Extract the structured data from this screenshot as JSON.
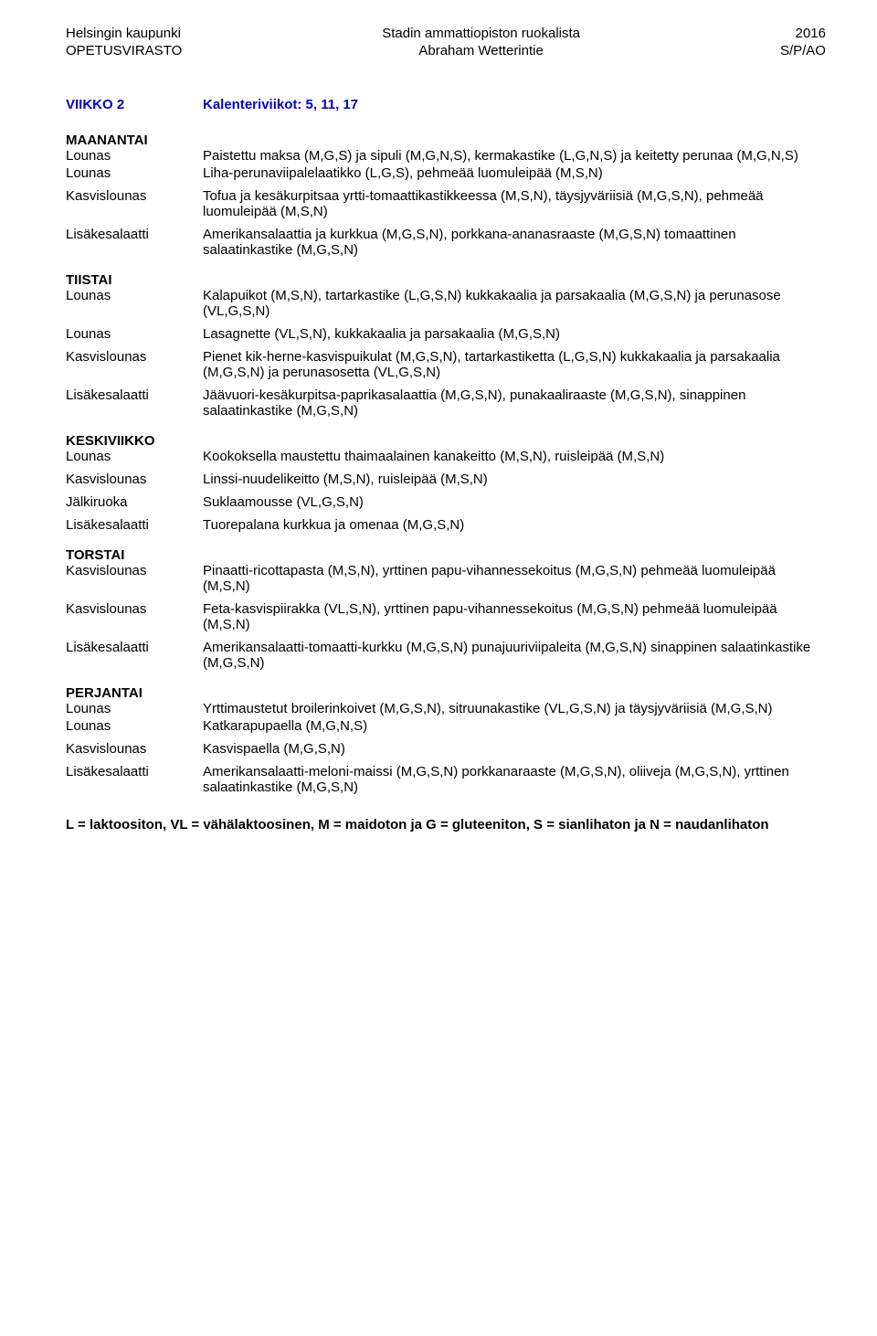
{
  "header": {
    "left1": "Helsingin kaupunki",
    "left2": "OPETUSVIRASTO",
    "center1": "Stadin ammattiopiston ruokalista",
    "center2": "Abraham Wetterintie",
    "right1": "2016",
    "right2": "S/P/AO"
  },
  "week": {
    "label": "VIIKKO 2",
    "value": "Kalenteriviikot: 5, 11, 17"
  },
  "days": {
    "maanantai": {
      "title": "MAANANTAI",
      "rows": [
        {
          "label": "Lounas",
          "text": "Paistettu maksa (M,G,S) ja sipuli (M,G,N,S), kermakastike (L,G,N,S) ja keitetty perunaa (M,G,N,S)"
        },
        {
          "label": "Lounas",
          "text": "Liha-perunaviipalelaatikko (L,G,S), pehmeää luomuleipää (M,S,N)"
        },
        {
          "label": "",
          "text": ""
        },
        {
          "label": "Kasvislounas",
          "text": "Tofua ja kesäkurpitsaa yrtti-tomaattikastikkeessa (M,S,N), täysjyväriisiä (M,G,S,N), pehmeää luomuleipää (M,S,N)"
        },
        {
          "label": "",
          "text": ""
        },
        {
          "label": "Lisäkesalaatti",
          "text": "Amerikansalaattia ja kurkkua (M,G,S,N), porkkana-ananasraaste (M,G,S,N) tomaattinen salaatinkastike (M,G,S,N)"
        }
      ]
    },
    "tiistai": {
      "title": "TIISTAI",
      "rows": [
        {
          "label": "Lounas",
          "text": "Kalapuikot (M,S,N), tartarkastike (L,G,S,N) kukkakaalia ja parsakaalia (M,G,S,N)  ja perunasose (VL,G,S,N)"
        },
        {
          "label": "",
          "text": ""
        },
        {
          "label": "Lounas",
          "text": "Lasagnette (VL,S,N),  kukkakaalia ja parsakaalia (M,G,S,N)"
        },
        {
          "label": "",
          "text": ""
        },
        {
          "label": "Kasvislounas",
          "text": "Pienet kik-herne-kasvispuikulat (M,G,S,N), tartarkastiketta (L,G,S,N) kukkakaalia ja parsakaalia (M,G,S,N)  ja perunasosetta (VL,G,S,N)"
        },
        {
          "label": "",
          "text": ""
        },
        {
          "label": "Lisäkesalaatti",
          "text": "Jäävuori-kesäkurpitsa-paprikasalaattia (M,G,S,N), punakaaliraaste (M,G,S,N), sinappinen salaatinkastike (M,G,S,N)"
        }
      ]
    },
    "keskiviikko": {
      "title": "KESKIVIIKKO",
      "rows": [
        {
          "label": "Lounas",
          "text": "Kookoksella maustettu thaimaalainen kanakeitto (M,S,N), ruisleipää (M,S,N)"
        },
        {
          "label": "",
          "text": ""
        },
        {
          "label": "Kasvislounas",
          "text": "Linssi-nuudelikeitto (M,S,N), ruisleipää (M,S,N)"
        },
        {
          "label": "",
          "text": ""
        },
        {
          "label": "Jälkiruoka",
          "text": "Suklaamousse (VL,G,S,N)"
        },
        {
          "label": "",
          "text": ""
        },
        {
          "label": "Lisäkesalaatti",
          "text": "Tuorepalana kurkkua ja omenaa (M,G,S,N)"
        }
      ]
    },
    "torstai": {
      "title": "TORSTAI",
      "rows": [
        {
          "label": "Kasvislounas",
          "text": "Pinaatti-ricottapasta (M,S,N),  yrttinen papu-vihannessekoitus (M,G,S,N) pehmeää luomuleipää (M,S,N)"
        },
        {
          "label": "",
          "text": ""
        },
        {
          "label": "Kasvislounas",
          "text": "Feta-kasvispiirakka (VL,S,N), yrttinen papu-vihannessekoitus (M,G,S,N) pehmeää luomuleipää (M,S,N)"
        },
        {
          "label": "",
          "text": ""
        },
        {
          "label": "Lisäkesalaatti",
          "text": "Amerikansalaatti-tomaatti-kurkku (M,G,S,N) punajuuriviipaleita (M,G,S,N) sinappinen salaatinkastike (M,G,S,N)"
        }
      ]
    },
    "perjantai": {
      "title": "PERJANTAI",
      "rows": [
        {
          "label": "Lounas",
          "text": "Yrttimaustetut broilerinkoivet (M,G,S,N), sitruunakastike (VL,G,S,N) ja täysjyväriisiä (M,G,S,N)"
        },
        {
          "label": "Lounas",
          "text": "Katkarapupaella (M,G,N,S)"
        },
        {
          "label": "",
          "text": ""
        },
        {
          "label": "Kasvislounas",
          "text": "Kasvispaella (M,G,S,N)"
        },
        {
          "label": "",
          "text": ""
        },
        {
          "label": "Lisäkesalaatti",
          "text": "Amerikansalaatti-meloni-maissi (M,G,S,N) porkkanaraaste (M,G,S,N), oliiveja (M,G,S,N), yrttinen salaatinkastike (M,G,S,N)"
        }
      ]
    }
  },
  "legend": "L = laktoositon, VL = vähälaktoosinen, M = maidoton ja G = gluteeniton, S = sianlihaton ja N = naudanlihaton"
}
